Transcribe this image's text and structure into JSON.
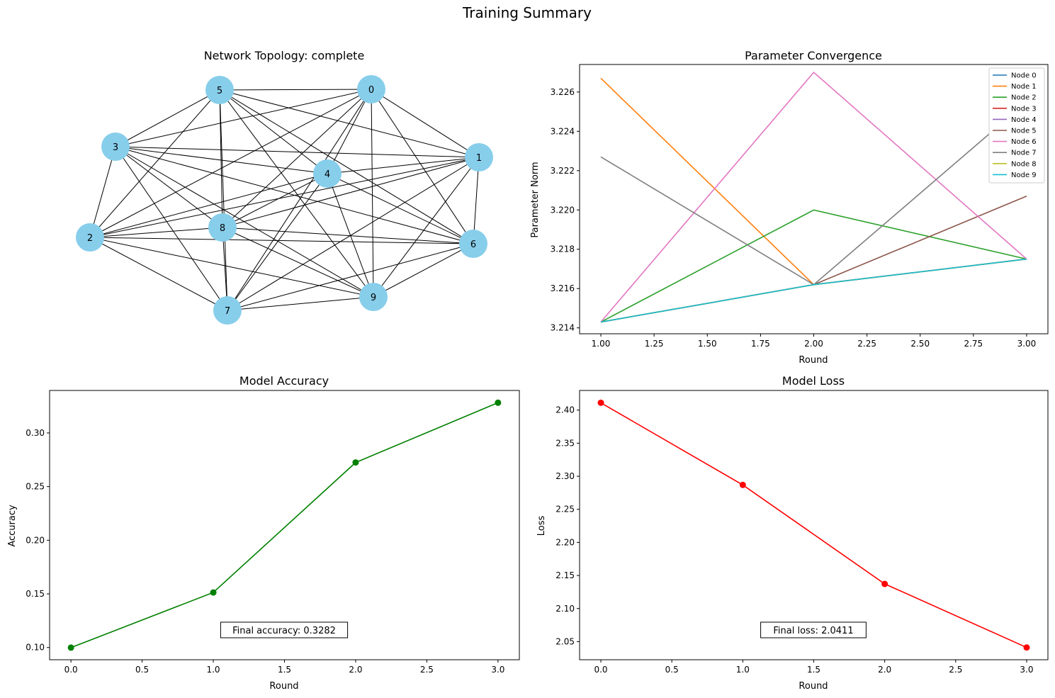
{
  "title": "Training Summary",
  "chart_data": [
    {
      "type": "network",
      "title": "Network Topology: complete",
      "node_color": "#87ceeb",
      "nodes": [
        "0",
        "1",
        "2",
        "3",
        "4",
        "5",
        "6",
        "7",
        "8",
        "9"
      ],
      "edges": "complete"
    },
    {
      "type": "line",
      "title": "Parameter Convergence",
      "xlabel": "Round",
      "ylabel": "Parameter Norm",
      "xlim": [
        0.9,
        3.1
      ],
      "ylim": [
        3.2137,
        3.2274
      ],
      "xticks": [
        "1.00",
        "1.25",
        "1.50",
        "1.75",
        "2.00",
        "2.25",
        "2.50",
        "2.75",
        "3.00"
      ],
      "yticks": [
        "3.214",
        "3.216",
        "3.218",
        "3.220",
        "3.222",
        "3.224",
        "3.226"
      ],
      "legend": "upper-right",
      "x": [
        1,
        2,
        3
      ],
      "series": [
        {
          "name": "Node 0",
          "color": "#1f77b4",
          "values": [
            3.2143,
            3.2162,
            3.2175
          ]
        },
        {
          "name": "Node 1",
          "color": "#ff7f0e",
          "values": [
            3.2267,
            3.2162,
            3.2175
          ]
        },
        {
          "name": "Node 2",
          "color": "#2ca02c",
          "values": [
            3.2143,
            3.22,
            3.2175
          ]
        },
        {
          "name": "Node 3",
          "color": "#d62728",
          "values": [
            3.2143,
            3.2162,
            3.2175
          ]
        },
        {
          "name": "Node 4",
          "color": "#9467bd",
          "values": [
            3.2143,
            3.2162,
            3.2175
          ]
        },
        {
          "name": "Node 5",
          "color": "#8c564b",
          "values": [
            3.2143,
            3.2162,
            3.2207
          ]
        },
        {
          "name": "Node 6",
          "color": "#e377c2",
          "values": [
            3.2143,
            3.227,
            3.2175
          ]
        },
        {
          "name": "Node 7",
          "color": "#7f7f7f",
          "values": [
            3.2227,
            3.2162,
            3.2255
          ]
        },
        {
          "name": "Node 8",
          "color": "#bcbd22",
          "values": [
            3.2143,
            3.2162,
            3.2175
          ]
        },
        {
          "name": "Node 9",
          "color": "#17becf",
          "values": [
            3.2143,
            3.2162,
            3.2175
          ]
        }
      ]
    },
    {
      "type": "line",
      "title": "Model Accuracy",
      "xlabel": "Round",
      "ylabel": "Accuracy",
      "xlim": [
        -0.15,
        3.15
      ],
      "ylim": [
        0.0886,
        0.3396
      ],
      "xticks": [
        "0.0",
        "0.5",
        "1.0",
        "1.5",
        "2.0",
        "2.5",
        "3.0"
      ],
      "yticks": [
        "0.10",
        "0.15",
        "0.20",
        "0.25",
        "0.30"
      ],
      "x": [
        0,
        1,
        2,
        3
      ],
      "series": [
        {
          "color": "#008000",
          "values": [
            0.0999,
            0.1513,
            0.2725,
            0.3282
          ]
        }
      ],
      "annotation": "Final accuracy: 0.3282"
    },
    {
      "type": "line",
      "title": "Model Loss",
      "xlabel": "Round",
      "ylabel": "Loss",
      "xlim": [
        -0.15,
        3.15
      ],
      "ylim": [
        2.0226,
        2.4297
      ],
      "xticks": [
        "0.0",
        "0.5",
        "1.0",
        "1.5",
        "2.0",
        "2.5",
        "3.0"
      ],
      "yticks": [
        "2.05",
        "2.10",
        "2.15",
        "2.20",
        "2.25",
        "2.30",
        "2.35",
        "2.40"
      ],
      "x": [
        0,
        1,
        2,
        3
      ],
      "series": [
        {
          "color": "#ff0000",
          "values": [
            2.4111,
            2.2869,
            2.1372,
            2.0411
          ]
        }
      ],
      "annotation": "Final loss: 2.0411"
    }
  ]
}
